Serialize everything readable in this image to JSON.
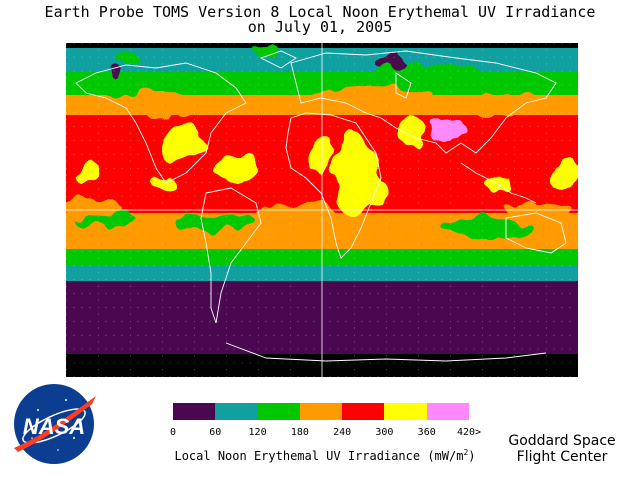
{
  "title": {
    "line1": "Earth Probe TOMS Version 8 Local Noon Erythemal UV Irradiance",
    "line2": "on July 01, 2005"
  },
  "colorbar": {
    "label_text": "Local Noon Erythemal UV Irradiance (mW/m",
    "label_sup": "2",
    "label_close": ")",
    "ticks": [
      "0",
      "60",
      "120",
      "180",
      "240",
      "300",
      "360",
      "420>"
    ],
    "colors": [
      "#4a0850",
      "#10a0a0",
      "#00c800",
      "#ff9a00",
      "#ff0000",
      "#ffff00",
      "#ff88ff"
    ]
  },
  "credit": {
    "line1": "Goddard Space",
    "line2": "Flight Center"
  },
  "logo": {
    "icon": "nasa-meatball-logo",
    "text": "NASA"
  },
  "map_colors": {
    "no_data": "#000000",
    "lowest": "#4a0850",
    "low": "#10a0a0",
    "moderate": "#00c800",
    "high": "#ff9a00",
    "very_high": "#ff0000",
    "extreme": "#ffff00",
    "top": "#ff88ff",
    "coastline": "#ffffff",
    "grid": "#ffffff"
  }
}
